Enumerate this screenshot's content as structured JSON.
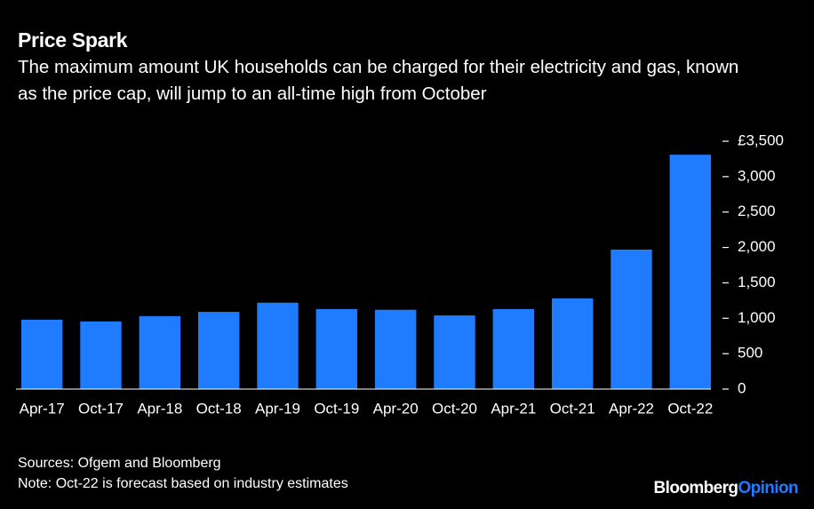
{
  "chart_data": {
    "type": "bar",
    "title": "Price Spark",
    "subtitle": "The maximum amount UK households can be charged for their electricity and gas, known as the price cap, will jump to an all-time high from October",
    "categories": [
      "Apr-17",
      "Oct-17",
      "Apr-18",
      "Oct-18",
      "Apr-19",
      "Oct-19",
      "Apr-20",
      "Oct-20",
      "Apr-21",
      "Oct-21",
      "Apr-22",
      "Oct-22"
    ],
    "values": [
      980,
      955,
      1030,
      1090,
      1220,
      1130,
      1120,
      1040,
      1130,
      1280,
      1970,
      3310
    ],
    "color": "#1f7bff",
    "ylim": [
      0,
      3500
    ],
    "yticks": [
      0,
      500,
      {
        "value": 1000,
        "label": "1,000"
      },
      {
        "value": 1500,
        "label": "1,500"
      },
      {
        "value": 2000,
        "label": "2,000"
      },
      {
        "value": 2500,
        "label": "2,500"
      },
      {
        "value": 3000,
        "label": "3,000"
      },
      {
        "value": 3500,
        "label": "£3,500"
      }
    ],
    "grid": false,
    "source": "Sources: Ofgem and Bloomberg",
    "note": "Note: Oct-22 is forecast based on industry estimates",
    "logo": {
      "brand": "Bloomberg",
      "suffix": "Opinion"
    }
  }
}
